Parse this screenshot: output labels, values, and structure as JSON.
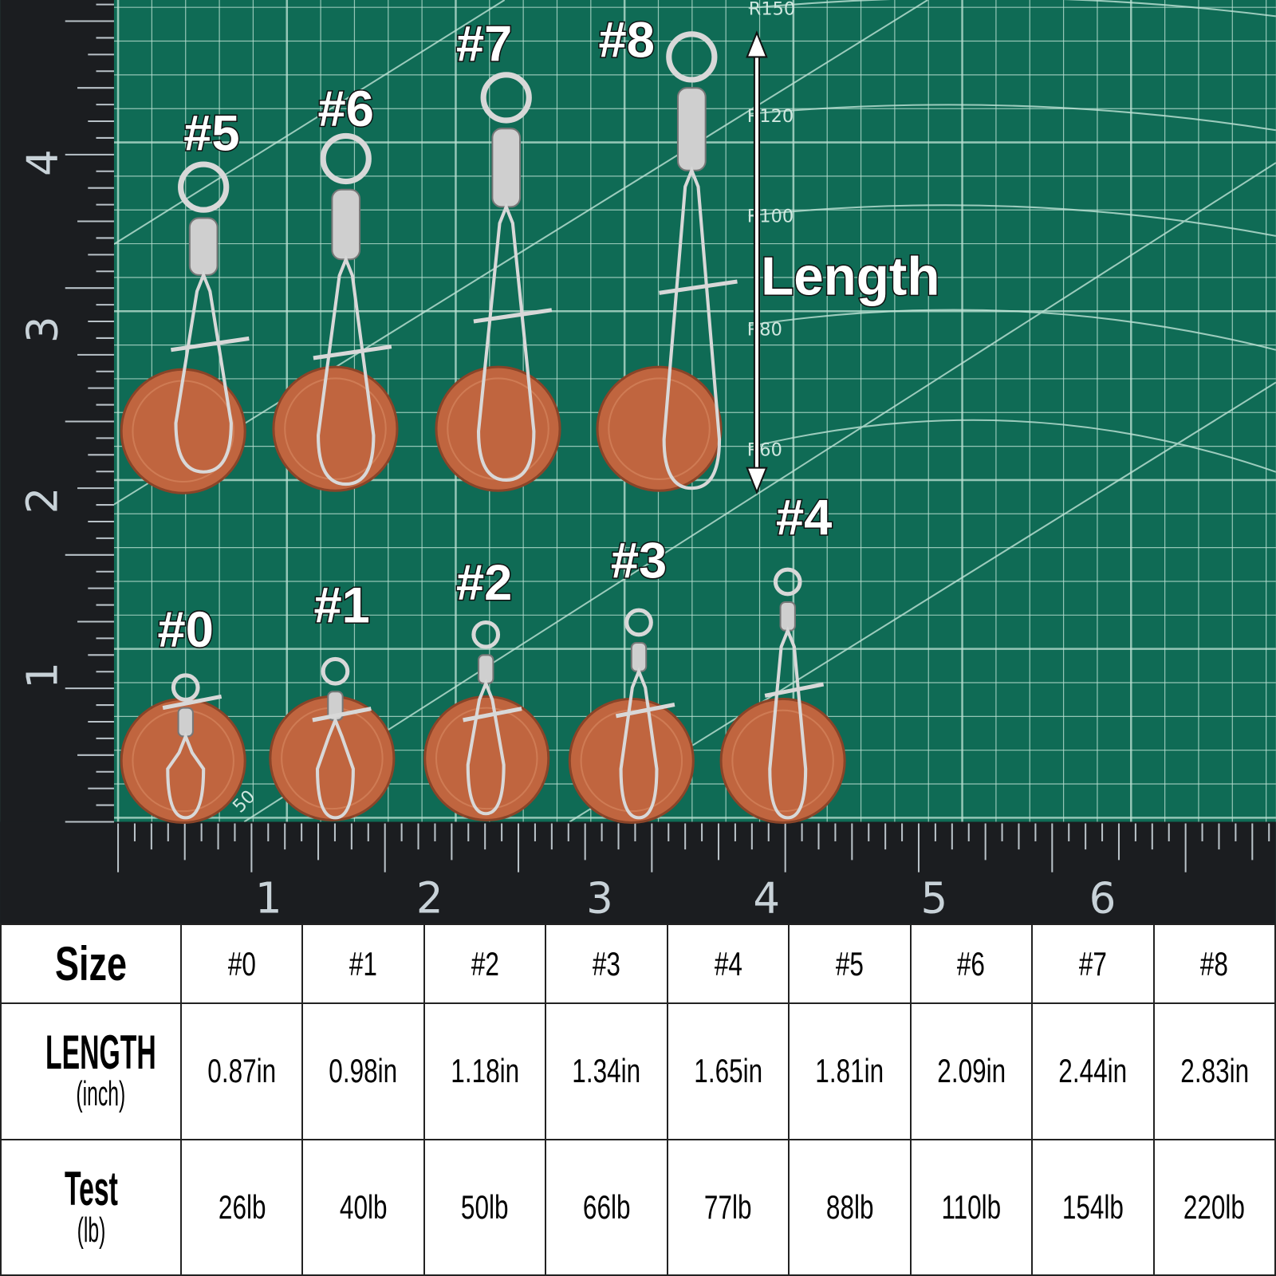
{
  "photo": {
    "size_labels": [
      {
        "text": "#5"
      },
      {
        "text": "#6"
      },
      {
        "text": "#7"
      },
      {
        "text": "#8"
      },
      {
        "text": "#0"
      },
      {
        "text": "#1"
      },
      {
        "text": "#2"
      },
      {
        "text": "#3"
      },
      {
        "text": "#4"
      }
    ],
    "length_label": "Length",
    "mat_labels": [
      "R150",
      "R120",
      "R100",
      "R80",
      "R60",
      "50"
    ],
    "left_ruler_numbers": [
      "1",
      "2",
      "3",
      "4"
    ],
    "bottom_ruler_numbers": [
      "1",
      "2",
      "3",
      "4",
      "5",
      "6"
    ],
    "colors": {
      "mat": "#0f6b55",
      "grid": "#bfe3d6",
      "ruler": "#1b1d20",
      "penny": "#c0653f",
      "steel": "#d8d8d8"
    }
  },
  "table": {
    "size_header": "Size",
    "length_header": "LENGTH",
    "length_unit": "(inch)",
    "test_header": "Test",
    "test_unit": "(lb)",
    "sizes": [
      "#0",
      "#1",
      "#2",
      "#3",
      "#4",
      "#5",
      "#6",
      "#7",
      "#8"
    ],
    "lengths": [
      "0.87in",
      "0.98in",
      "1.18in",
      "1.34in",
      "1.65in",
      "1.81in",
      "2.09in",
      "2.44in",
      "2.83in"
    ],
    "tests": [
      "26lb",
      "40lb",
      "50lb",
      "66lb",
      "77lb",
      "88lb",
      "110lb",
      "154lb",
      "220lb"
    ]
  }
}
